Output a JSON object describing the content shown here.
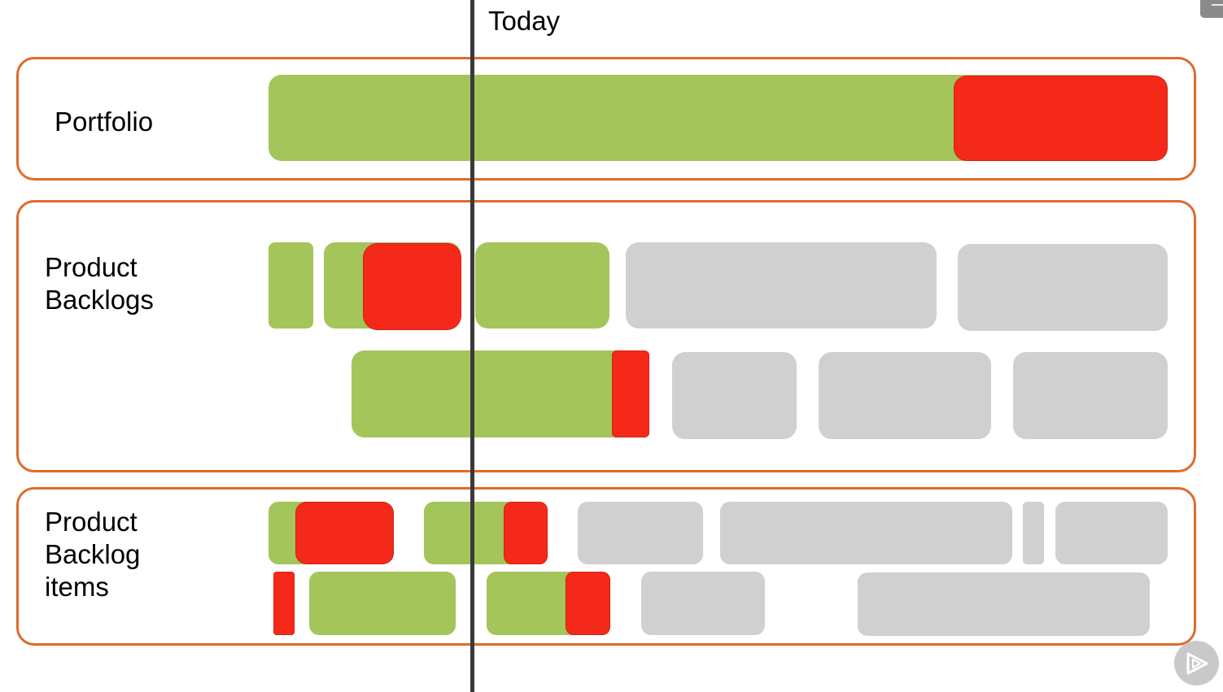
{
  "today_label": "Today",
  "colors": {
    "done": "#a3c55a",
    "late": "#f5291a",
    "planned": "#d0d0d0",
    "band_border": "#e06a2c",
    "today_line": "#3a3a3a"
  },
  "bands": [
    {
      "label": "Portfolio"
    },
    {
      "label": "Product\nBacklogs"
    },
    {
      "label": "Product\nBacklog\nitems"
    }
  ],
  "icons": {
    "play_button": "play-icon",
    "corner_tab": "minimize-icon"
  }
}
